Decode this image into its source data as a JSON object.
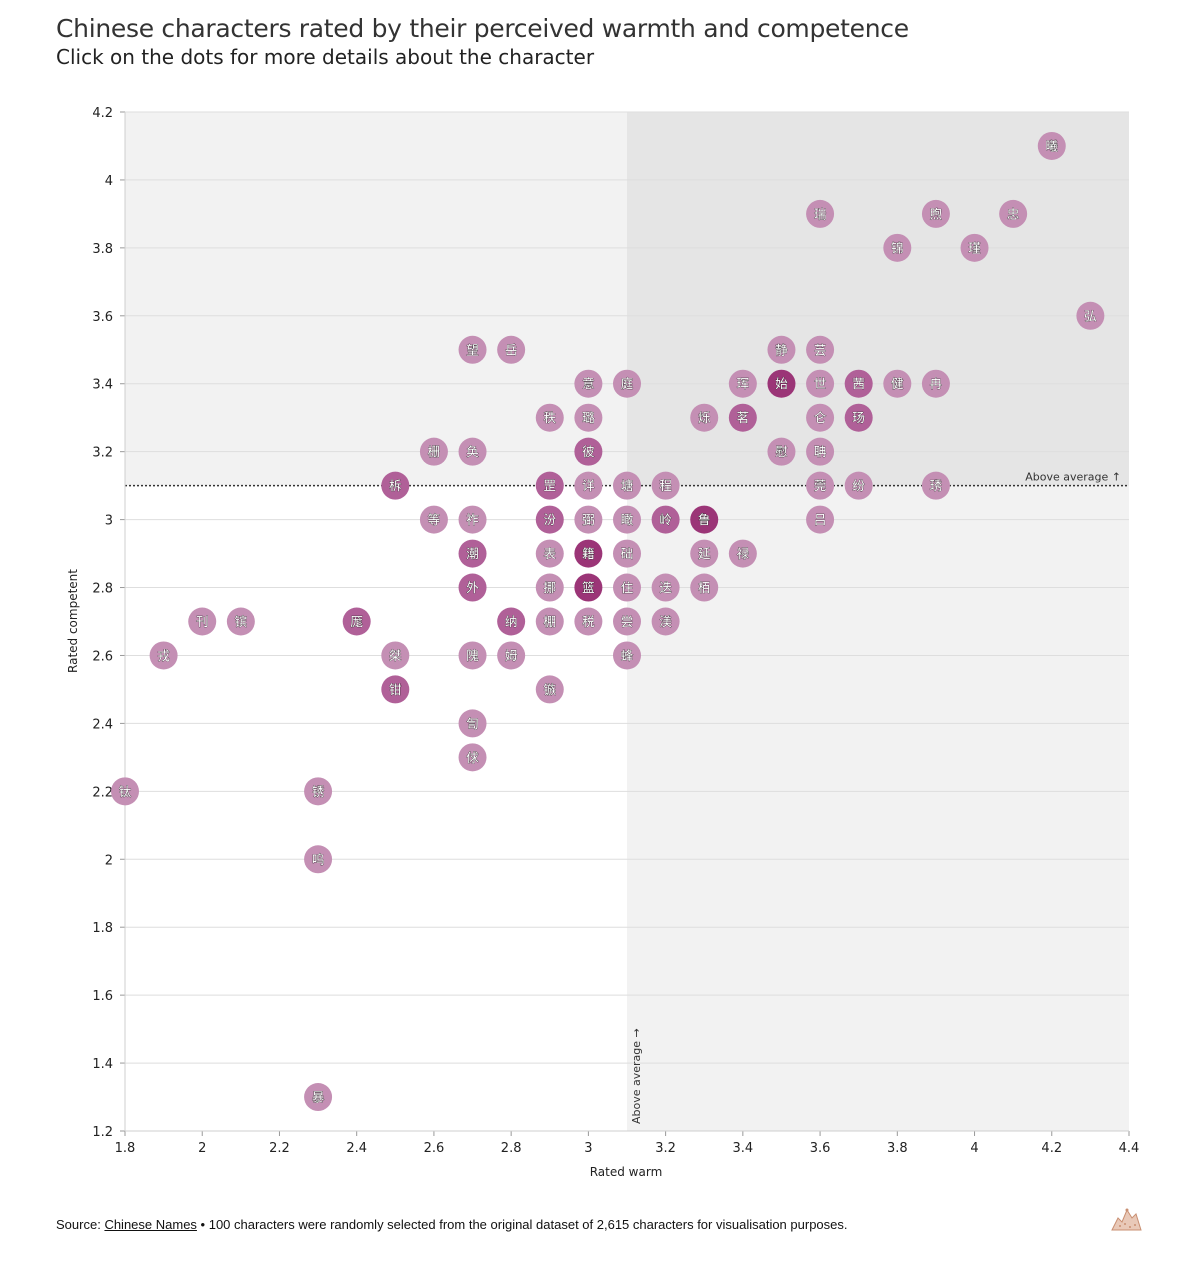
{
  "header": {
    "title": "Chinese characters rated by their perceived warmth and competence",
    "subtitle": "Click on the dots for more details about the character"
  },
  "footer": {
    "source_label": "Source:",
    "source_link": "Chinese Names",
    "note": " • 100 characters were randomly selected from the original dataset of 2,615 characters for visualisation purposes."
  },
  "colors": {
    "dot_light": "#c48fb4",
    "dot_mid": "#b06098",
    "dot_dark": "#9b3577",
    "quadrant_light": "#f2f2f2",
    "quadrant_dark": "#e5e5e5"
  },
  "chart_data": {
    "type": "scatter",
    "title": "Chinese characters rated by their perceived warmth and competence",
    "xlabel": "Rated warm",
    "ylabel": "Rated competent",
    "xlim": [
      1.8,
      4.4
    ],
    "ylim": [
      1.2,
      4.2
    ],
    "xticks": [
      "1.8",
      "2",
      "2.2",
      "2.4",
      "2.6",
      "2.8",
      "3",
      "3.2",
      "3.4",
      "3.6",
      "3.8",
      "4",
      "4.2",
      "4.4"
    ],
    "yticks": [
      "1.2",
      "1.4",
      "1.6",
      "1.8",
      "2",
      "2.2",
      "2.4",
      "2.6",
      "2.8",
      "3",
      "3.2",
      "3.4",
      "3.6",
      "3.8",
      "4",
      "4.2"
    ],
    "grid": true,
    "reference_lines": {
      "horizontal": {
        "value": 3.1,
        "label": "Above average ↑"
      },
      "vertical": {
        "value": 3.1,
        "label": "Above average →"
      }
    },
    "points": [
      {
        "char": "曦",
        "x": 4.2,
        "y": 4.1,
        "shade": 1
      },
      {
        "char": "瑞",
        "x": 3.6,
        "y": 3.9,
        "shade": 1
      },
      {
        "char": "煦",
        "x": 3.9,
        "y": 3.9,
        "shade": 1
      },
      {
        "char": "忠",
        "x": 4.1,
        "y": 3.9,
        "shade": 1
      },
      {
        "char": "锦",
        "x": 3.8,
        "y": 3.8,
        "shade": 1
      },
      {
        "char": "瑾",
        "x": 4.0,
        "y": 3.8,
        "shade": 1
      },
      {
        "char": "弘",
        "x": 4.3,
        "y": 3.6,
        "shade": 1
      },
      {
        "char": "望",
        "x": 2.7,
        "y": 3.5,
        "shade": 1
      },
      {
        "char": "岳",
        "x": 2.8,
        "y": 3.5,
        "shade": 1
      },
      {
        "char": "静",
        "x": 3.5,
        "y": 3.5,
        "shade": 1
      },
      {
        "char": "芸",
        "x": 3.6,
        "y": 3.5,
        "shade": 1
      },
      {
        "char": "意",
        "x": 3.0,
        "y": 3.4,
        "shade": 1
      },
      {
        "char": "庭",
        "x": 3.1,
        "y": 3.4,
        "shade": 1
      },
      {
        "char": "珲",
        "x": 3.4,
        "y": 3.4,
        "shade": 1
      },
      {
        "char": "始",
        "x": 3.5,
        "y": 3.4,
        "shade": 3
      },
      {
        "char": "世",
        "x": 3.6,
        "y": 3.4,
        "shade": 1
      },
      {
        "char": "茜",
        "x": 3.7,
        "y": 3.4,
        "shade": 2
      },
      {
        "char": "健",
        "x": 3.8,
        "y": 3.4,
        "shade": 1
      },
      {
        "char": "冉",
        "x": 3.9,
        "y": 3.4,
        "shade": 1
      },
      {
        "char": "秩",
        "x": 2.9,
        "y": 3.3,
        "shade": 1
      },
      {
        "char": "璐",
        "x": 3.0,
        "y": 3.3,
        "shade": 1
      },
      {
        "char": "烁",
        "x": 3.3,
        "y": 3.3,
        "shade": 1
      },
      {
        "char": "茗",
        "x": 3.4,
        "y": 3.3,
        "shade": 2
      },
      {
        "char": "仑",
        "x": 3.6,
        "y": 3.3,
        "shade": 1
      },
      {
        "char": "玚",
        "x": 3.7,
        "y": 3.3,
        "shade": 2
      },
      {
        "char": "栅",
        "x": 2.6,
        "y": 3.2,
        "shade": 1
      },
      {
        "char": "奂",
        "x": 2.7,
        "y": 3.2,
        "shade": 1
      },
      {
        "char": "彼",
        "x": 3.0,
        "y": 3.2,
        "shade": 2
      },
      {
        "char": "慰",
        "x": 3.5,
        "y": 3.2,
        "shade": 1
      },
      {
        "char": "聃",
        "x": 3.6,
        "y": 3.2,
        "shade": 1
      },
      {
        "char": "柝",
        "x": 2.5,
        "y": 3.1,
        "shade": 2
      },
      {
        "char": "罡",
        "x": 2.9,
        "y": 3.1,
        "shade": 2
      },
      {
        "char": "详",
        "x": 3.0,
        "y": 3.1,
        "shade": 1
      },
      {
        "char": "塘",
        "x": 3.1,
        "y": 3.1,
        "shade": 1
      },
      {
        "char": "程",
        "x": 3.2,
        "y": 3.1,
        "shade": 1
      },
      {
        "char": "莞",
        "x": 3.6,
        "y": 3.1,
        "shade": 1
      },
      {
        "char": "纷",
        "x": 3.7,
        "y": 3.1,
        "shade": 1
      },
      {
        "char": "琇",
        "x": 3.9,
        "y": 3.1,
        "shade": 1
      },
      {
        "char": "等",
        "x": 2.6,
        "y": 3.0,
        "shade": 1
      },
      {
        "char": "祚",
        "x": 2.7,
        "y": 3.0,
        "shade": 1
      },
      {
        "char": "汾",
        "x": 2.9,
        "y": 3.0,
        "shade": 2
      },
      {
        "char": "弼",
        "x": 3.0,
        "y": 3.0,
        "shade": 1
      },
      {
        "char": "瞰",
        "x": 3.1,
        "y": 3.0,
        "shade": 1
      },
      {
        "char": "岭",
        "x": 3.2,
        "y": 3.0,
        "shade": 2
      },
      {
        "char": "鲁",
        "x": 3.3,
        "y": 3.0,
        "shade": 3
      },
      {
        "char": "吕",
        "x": 3.6,
        "y": 3.0,
        "shade": 1
      },
      {
        "char": "潮",
        "x": 2.7,
        "y": 2.9,
        "shade": 2
      },
      {
        "char": "表",
        "x": 2.9,
        "y": 2.9,
        "shade": 1
      },
      {
        "char": "籍",
        "x": 3.0,
        "y": 2.9,
        "shade": 3
      },
      {
        "char": "础",
        "x": 3.1,
        "y": 2.9,
        "shade": 1
      },
      {
        "char": "延",
        "x": 3.3,
        "y": 2.9,
        "shade": 1
      },
      {
        "char": "禄",
        "x": 3.4,
        "y": 2.9,
        "shade": 1
      },
      {
        "char": "外",
        "x": 2.7,
        "y": 2.8,
        "shade": 2
      },
      {
        "char": "挪",
        "x": 2.9,
        "y": 2.8,
        "shade": 1
      },
      {
        "char": "篮",
        "x": 3.0,
        "y": 2.8,
        "shade": 3
      },
      {
        "char": "住",
        "x": 3.1,
        "y": 2.8,
        "shade": 1
      },
      {
        "char": "迭",
        "x": 3.2,
        "y": 2.8,
        "shade": 1
      },
      {
        "char": "栢",
        "x": 3.3,
        "y": 2.8,
        "shade": 1
      },
      {
        "char": "刊",
        "x": 2.0,
        "y": 2.7,
        "shade": 1
      },
      {
        "char": "镔",
        "x": 2.1,
        "y": 2.7,
        "shade": 1
      },
      {
        "char": "厖",
        "x": 2.4,
        "y": 2.7,
        "shade": 2
      },
      {
        "char": "纳",
        "x": 2.8,
        "y": 2.7,
        "shade": 2
      },
      {
        "char": "棚",
        "x": 2.9,
        "y": 2.7,
        "shade": 1
      },
      {
        "char": "税",
        "x": 3.0,
        "y": 2.7,
        "shade": 1
      },
      {
        "char": "尝",
        "x": 3.1,
        "y": 2.7,
        "shade": 1
      },
      {
        "char": "渼",
        "x": 3.2,
        "y": 2.7,
        "shade": 1
      },
      {
        "char": "戎",
        "x": 1.9,
        "y": 2.6,
        "shade": 1
      },
      {
        "char": "桀",
        "x": 2.5,
        "y": 2.6,
        "shade": 1
      },
      {
        "char": "隗",
        "x": 2.7,
        "y": 2.6,
        "shade": 1
      },
      {
        "char": "姆",
        "x": 2.8,
        "y": 2.6,
        "shade": 1
      },
      {
        "char": "蜂",
        "x": 3.1,
        "y": 2.6,
        "shade": 1
      },
      {
        "char": "钳",
        "x": 2.5,
        "y": 2.5,
        "shade": 2
      },
      {
        "char": "镞",
        "x": 2.9,
        "y": 2.5,
        "shade": 1
      },
      {
        "char": "訇",
        "x": 2.7,
        "y": 2.4,
        "shade": 1
      },
      {
        "char": "俅",
        "x": 2.7,
        "y": 2.3,
        "shade": 1
      },
      {
        "char": "钛",
        "x": 1.8,
        "y": 2.2,
        "shade": 1
      },
      {
        "char": "锈",
        "x": 2.3,
        "y": 2.2,
        "shade": 1
      },
      {
        "char": "呜",
        "x": 2.3,
        "y": 2.0,
        "shade": 1
      },
      {
        "char": "暴",
        "x": 2.3,
        "y": 1.3,
        "shade": 1
      }
    ]
  }
}
